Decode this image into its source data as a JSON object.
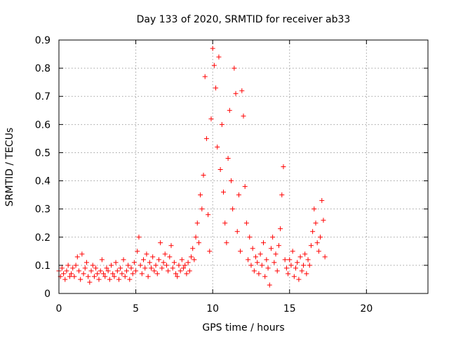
{
  "chart_data": {
    "type": "scatter",
    "title": "Day 133 of 2020, SRMTID for receiver ab33",
    "xlabel": "GPS time / hours",
    "ylabel": "SRMTID / TECUs",
    "xlim": [
      0,
      24
    ],
    "ylim": [
      0,
      0.9
    ],
    "xticks": [
      0,
      5,
      10,
      15,
      20
    ],
    "xtick_labels": [
      "0",
      "5",
      "10",
      "15",
      "20"
    ],
    "yticks": [
      0,
      0.1,
      0.2,
      0.3,
      0.4,
      0.5,
      0.6,
      0.7,
      0.8,
      0.9
    ],
    "ytick_labels": [
      "0",
      "0.1",
      "0.2",
      "0.3",
      "0.4",
      "0.5",
      "0.6",
      "0.7",
      "0.8",
      "0.9"
    ],
    "grid": true,
    "marker": "+",
    "color": "#ff0000",
    "series": [
      {
        "name": "SRMTID",
        "points": [
          [
            0.0,
            0.08
          ],
          [
            0.1,
            0.06
          ],
          [
            0.2,
            0.09
          ],
          [
            0.3,
            0.07
          ],
          [
            0.4,
            0.05
          ],
          [
            0.5,
            0.08
          ],
          [
            0.6,
            0.1
          ],
          [
            0.7,
            0.06
          ],
          [
            0.8,
            0.07
          ],
          [
            0.9,
            0.09
          ],
          [
            1.0,
            0.06
          ],
          [
            1.1,
            0.1
          ],
          [
            1.2,
            0.13
          ],
          [
            1.3,
            0.08
          ],
          [
            1.4,
            0.05
          ],
          [
            1.5,
            0.14
          ],
          [
            1.6,
            0.07
          ],
          [
            1.7,
            0.09
          ],
          [
            1.8,
            0.11
          ],
          [
            1.9,
            0.06
          ],
          [
            2.0,
            0.04
          ],
          [
            2.1,
            0.08
          ],
          [
            2.2,
            0.1
          ],
          [
            2.3,
            0.06
          ],
          [
            2.4,
            0.09
          ],
          [
            2.5,
            0.07
          ],
          [
            2.6,
            0.05
          ],
          [
            2.7,
            0.08
          ],
          [
            2.8,
            0.12
          ],
          [
            2.9,
            0.07
          ],
          [
            3.0,
            0.06
          ],
          [
            3.1,
            0.09
          ],
          [
            3.2,
            0.08
          ],
          [
            3.3,
            0.05
          ],
          [
            3.4,
            0.1
          ],
          [
            3.5,
            0.07
          ],
          [
            3.6,
            0.06
          ],
          [
            3.7,
            0.11
          ],
          [
            3.8,
            0.08
          ],
          [
            3.9,
            0.05
          ],
          [
            4.0,
            0.09
          ],
          [
            4.1,
            0.07
          ],
          [
            4.2,
            0.12
          ],
          [
            4.3,
            0.06
          ],
          [
            4.4,
            0.08
          ],
          [
            4.5,
            0.1
          ],
          [
            4.6,
            0.05
          ],
          [
            4.7,
            0.09
          ],
          [
            4.8,
            0.07
          ],
          [
            4.9,
            0.11
          ],
          [
            5.0,
            0.08
          ],
          [
            5.1,
            0.15
          ],
          [
            5.2,
            0.2
          ],
          [
            5.3,
            0.1
          ],
          [
            5.4,
            0.07
          ],
          [
            5.5,
            0.12
          ],
          [
            5.6,
            0.09
          ],
          [
            5.7,
            0.14
          ],
          [
            5.8,
            0.06
          ],
          [
            5.9,
            0.11
          ],
          [
            6.0,
            0.09
          ],
          [
            6.1,
            0.13
          ],
          [
            6.2,
            0.08
          ],
          [
            6.3,
            0.1
          ],
          [
            6.4,
            0.07
          ],
          [
            6.5,
            0.12
          ],
          [
            6.6,
            0.18
          ],
          [
            6.7,
            0.09
          ],
          [
            6.8,
            0.11
          ],
          [
            6.9,
            0.14
          ],
          [
            7.0,
            0.1
          ],
          [
            7.1,
            0.08
          ],
          [
            7.2,
            0.13
          ],
          [
            7.3,
            0.17
          ],
          [
            7.4,
            0.09
          ],
          [
            7.5,
            0.11
          ],
          [
            7.6,
            0.07
          ],
          [
            7.7,
            0.06
          ],
          [
            7.8,
            0.1
          ],
          [
            7.9,
            0.08
          ],
          [
            8.0,
            0.12
          ],
          [
            8.1,
            0.09
          ],
          [
            8.2,
            0.1
          ],
          [
            8.3,
            0.07
          ],
          [
            8.4,
            0.11
          ],
          [
            8.5,
            0.08
          ],
          [
            8.6,
            0.13
          ],
          [
            8.7,
            0.16
          ],
          [
            8.8,
            0.12
          ],
          [
            8.9,
            0.2
          ],
          [
            9.0,
            0.25
          ],
          [
            9.1,
            0.18
          ],
          [
            9.2,
            0.35
          ],
          [
            9.3,
            0.3
          ],
          [
            9.4,
            0.42
          ],
          [
            9.5,
            0.77
          ],
          [
            9.6,
            0.55
          ],
          [
            9.7,
            0.28
          ],
          [
            9.8,
            0.15
          ],
          [
            9.9,
            0.62
          ],
          [
            10.0,
            0.87
          ],
          [
            10.1,
            0.81
          ],
          [
            10.2,
            0.73
          ],
          [
            10.3,
            0.52
          ],
          [
            10.4,
            0.84
          ],
          [
            10.5,
            0.44
          ],
          [
            10.6,
            0.6
          ],
          [
            10.7,
            0.36
          ],
          [
            10.8,
            0.25
          ],
          [
            10.9,
            0.18
          ],
          [
            11.0,
            0.48
          ],
          [
            11.1,
            0.65
          ],
          [
            11.2,
            0.4
          ],
          [
            11.3,
            0.3
          ],
          [
            11.4,
            0.8
          ],
          [
            11.5,
            0.71
          ],
          [
            11.6,
            0.22
          ],
          [
            11.7,
            0.35
          ],
          [
            11.8,
            0.15
          ],
          [
            11.9,
            0.72
          ],
          [
            12.0,
            0.63
          ],
          [
            12.1,
            0.38
          ],
          [
            12.2,
            0.25
          ],
          [
            12.3,
            0.12
          ],
          [
            12.4,
            0.2
          ],
          [
            12.5,
            0.1
          ],
          [
            12.6,
            0.16
          ],
          [
            12.7,
            0.08
          ],
          [
            12.8,
            0.13
          ],
          [
            12.9,
            0.11
          ],
          [
            13.0,
            0.07
          ],
          [
            13.1,
            0.14
          ],
          [
            13.2,
            0.1
          ],
          [
            13.3,
            0.18
          ],
          [
            13.4,
            0.06
          ],
          [
            13.5,
            0.12
          ],
          [
            13.6,
            0.09
          ],
          [
            13.7,
            0.03
          ],
          [
            13.8,
            0.16
          ],
          [
            13.9,
            0.2
          ],
          [
            14.0,
            0.11
          ],
          [
            14.1,
            0.14
          ],
          [
            14.2,
            0.08
          ],
          [
            14.3,
            0.17
          ],
          [
            14.4,
            0.23
          ],
          [
            14.5,
            0.35
          ],
          [
            14.6,
            0.45
          ],
          [
            14.7,
            0.12
          ],
          [
            14.8,
            0.09
          ],
          [
            14.9,
            0.07
          ],
          [
            15.0,
            0.12
          ],
          [
            15.1,
            0.1
          ],
          [
            15.2,
            0.15
          ],
          [
            15.3,
            0.06
          ],
          [
            15.4,
            0.09
          ],
          [
            15.5,
            0.11
          ],
          [
            15.6,
            0.05
          ],
          [
            15.7,
            0.13
          ],
          [
            15.8,
            0.08
          ],
          [
            15.9,
            0.1
          ],
          [
            16.0,
            0.14
          ],
          [
            16.1,
            0.07
          ],
          [
            16.2,
            0.12
          ],
          [
            16.3,
            0.1
          ],
          [
            16.4,
            0.17
          ],
          [
            16.5,
            0.22
          ],
          [
            16.6,
            0.3
          ],
          [
            16.7,
            0.25
          ],
          [
            16.8,
            0.18
          ],
          [
            16.9,
            0.15
          ],
          [
            17.0,
            0.2
          ],
          [
            17.1,
            0.33
          ],
          [
            17.2,
            0.26
          ],
          [
            17.3,
            0.13
          ]
        ]
      }
    ]
  }
}
